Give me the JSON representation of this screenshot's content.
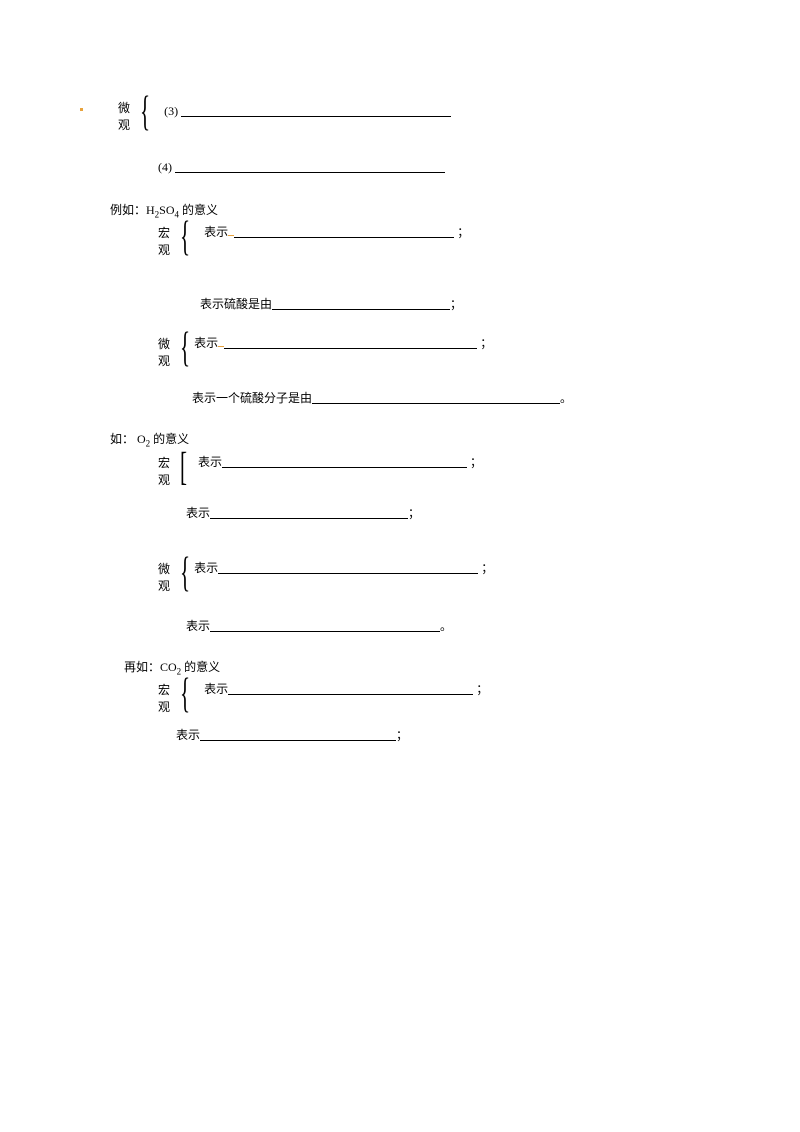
{
  "colors": {
    "accent": "#e8a33d",
    "text": "#000000",
    "bg": "#ffffff",
    "underline": "#000000"
  },
  "fonts": {
    "body_family": "SimSun",
    "body_size_pt": 9
  },
  "block1": {
    "label_line1": "微",
    "label_line2": "观",
    "item3_num": "(3)",
    "item4_num": "(4)",
    "uline3_w": 270,
    "uline4_w": 270
  },
  "ex1": {
    "heading_prefix": "例如：H",
    "heading_sub": "2",
    "heading_mid": "SO",
    "heading_sub2": "4",
    "heading_suffix": " 的意义",
    "macro_label1": "宏",
    "macro_label2": "观",
    "macro_line1_prefix": "表示",
    "macro_line1_uline_w": 220,
    "macro_line1_suffix": "；",
    "macro_line2_prefix": "表示硫酸是由",
    "macro_line2_uline_w": 178,
    "macro_line2_suffix": "；",
    "micro_label1": "微",
    "micro_label2": "观",
    "micro_line1_prefix": "表示",
    "micro_line1_uline_w": 253,
    "micro_line1_suffix": "；",
    "micro_line2_prefix": "表示一个硫酸分子是由",
    "micro_line2_uline_w": 248,
    "micro_line2_suffix": "。"
  },
  "ex2": {
    "heading_prefix": "如： O",
    "heading_sub": "2",
    "heading_suffix": " 的意义",
    "macro_label1": "宏",
    "macro_label2": "观",
    "macro_line1_prefix": "表示",
    "macro_line1_uline_w": 245,
    "macro_line1_suffix": "；",
    "macro_line2_prefix": "表示",
    "macro_line2_uline_w": 198,
    "macro_line2_suffix": "；",
    "micro_label1": "微",
    "micro_label2": "观",
    "micro_line1_prefix": "表示",
    "micro_line1_uline_w": 260,
    "micro_line1_suffix": "；",
    "micro_line2_prefix": "表示",
    "micro_line2_uline_w": 230,
    "micro_line2_suffix": "。"
  },
  "ex3": {
    "heading_prefix": "再如：CO",
    "heading_sub": "2",
    "heading_suffix": " 的意义",
    "macro_label1": "宏",
    "macro_label2": "观",
    "macro_line1_prefix": "表示",
    "macro_line1_uline_w": 245,
    "macro_line1_suffix": "；",
    "macro_line2_prefix": "表示",
    "macro_line2_uline_w": 196,
    "macro_line2_suffix": "；"
  }
}
